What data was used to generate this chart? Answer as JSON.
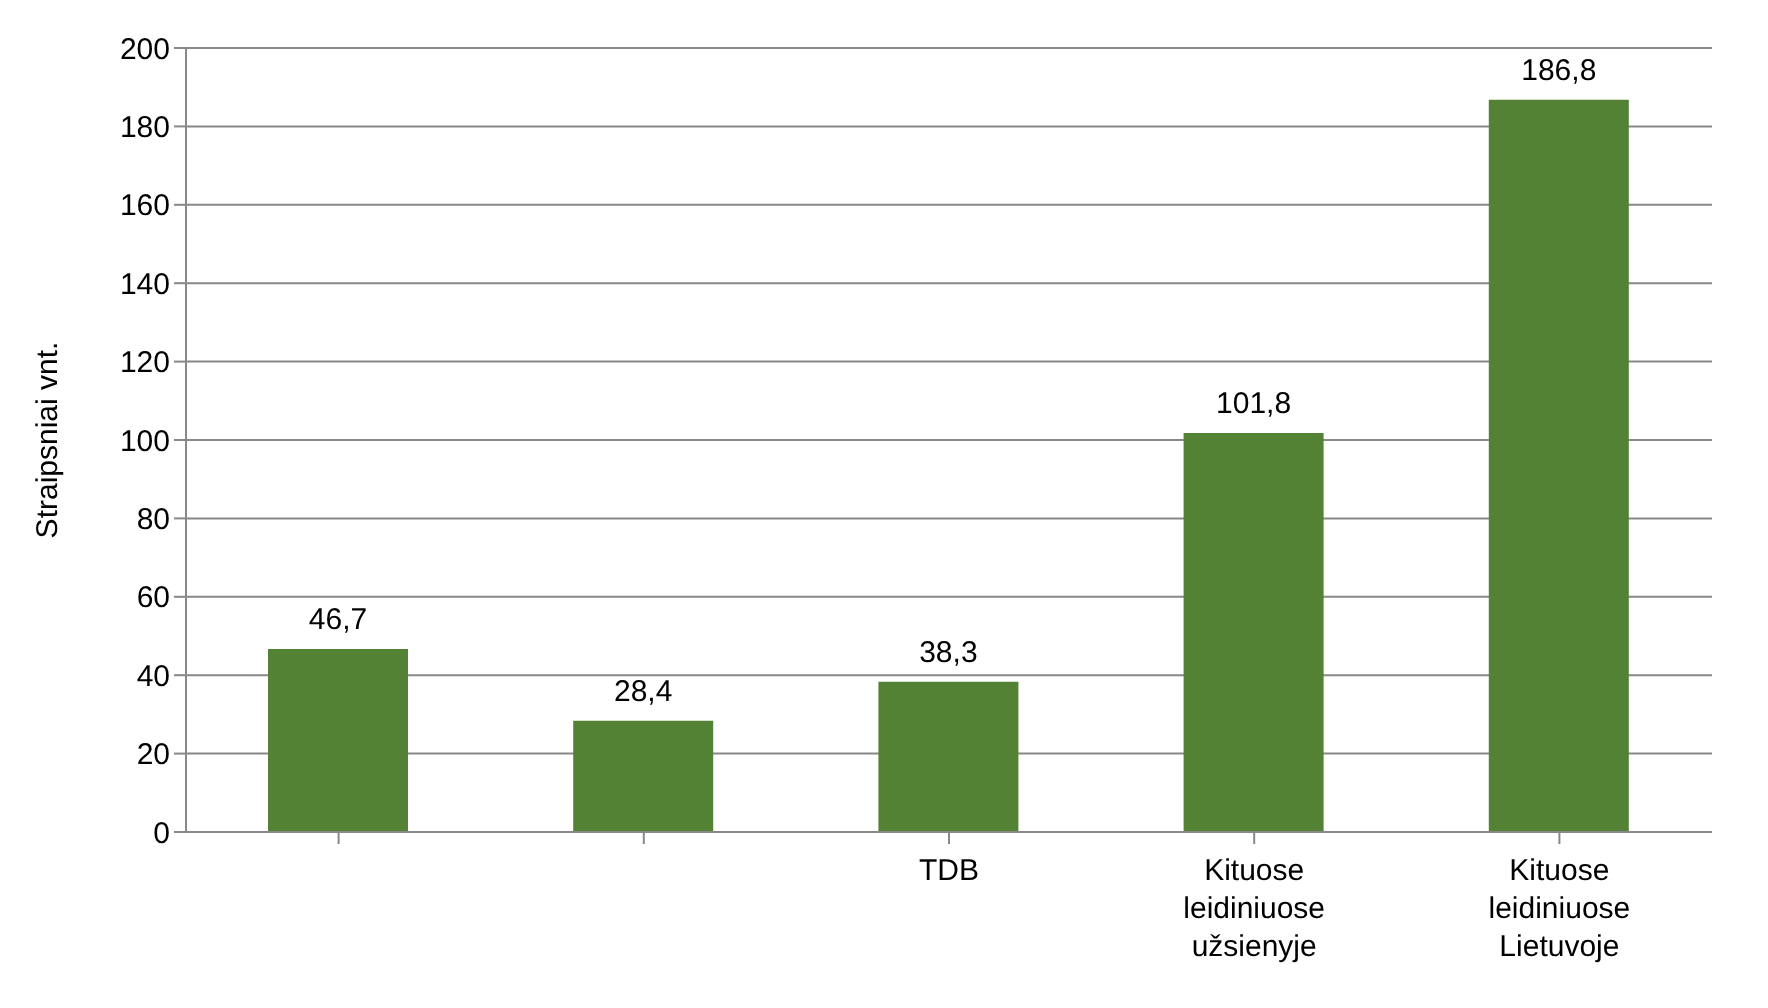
{
  "chart_data": {
    "type": "bar",
    "ylabel": "Straipsniai vnt.",
    "categories": [
      null,
      null,
      "TDB",
      "Kituose leidiniuose užsienyje",
      "Kituose leidiniuose Lietuvoje"
    ],
    "values": [
      46.7,
      28.4,
      38.3,
      101.8,
      186.8
    ],
    "value_labels": [
      "46,7",
      "28,4",
      "38,3",
      "101,8",
      "186,8"
    ],
    "color": "#548235",
    "ylim": [
      0,
      200
    ],
    "yticks": [
      0,
      20,
      40,
      60,
      80,
      100,
      120,
      140,
      160,
      180,
      200
    ],
    "grid": "y",
    "legend": false
  }
}
